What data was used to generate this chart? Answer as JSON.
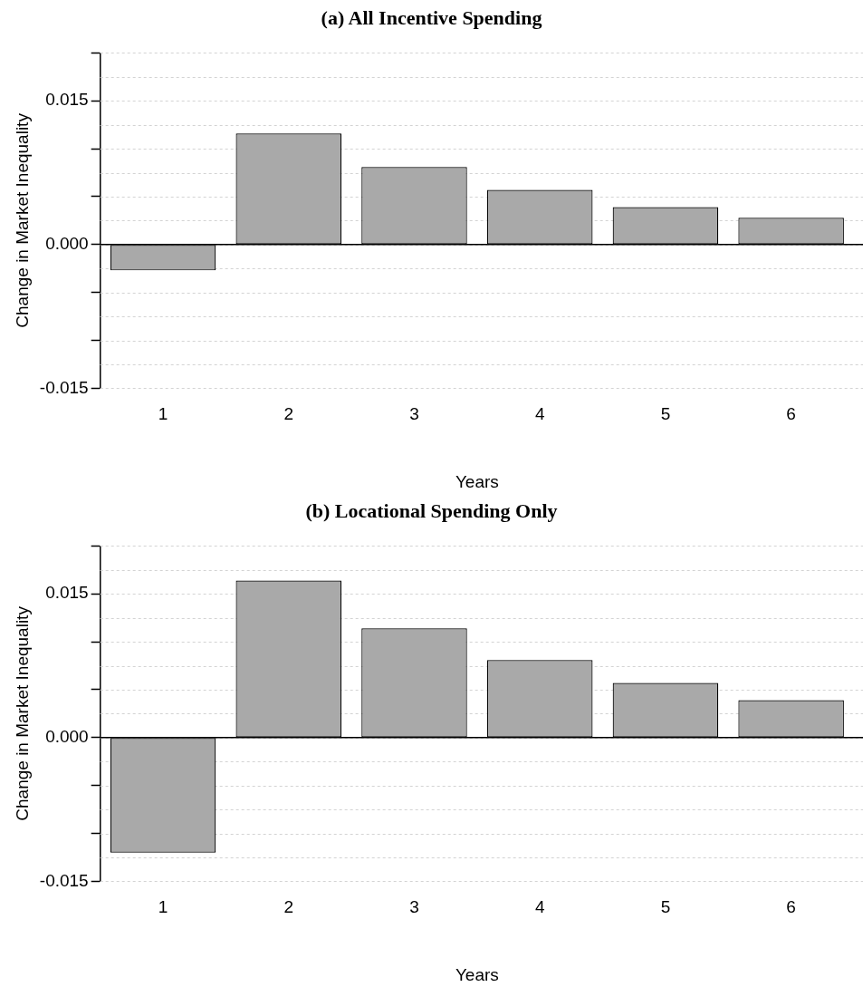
{
  "chart_data": [
    {
      "type": "bar",
      "title": "(a) All Incentive Spending",
      "xlabel": "Years",
      "ylabel": "Change in Market Inequality",
      "categories": [
        "1",
        "2",
        "3",
        "4",
        "5",
        "6"
      ],
      "values": [
        -0.0027,
        0.0116,
        0.0081,
        0.0057,
        0.0039,
        0.0028
      ],
      "color": "#a9a9a9",
      "ylim": [
        -0.015,
        0.02
      ],
      "yticks": [
        {
          "value": -0.015,
          "label": "-0.015"
        },
        {
          "value": -0.01,
          "label": null
        },
        {
          "value": -0.005,
          "label": null
        },
        {
          "value": 0,
          "label": "0.000"
        },
        {
          "value": 0.005,
          "label": null
        },
        {
          "value": 0.01,
          "label": null
        },
        {
          "value": 0.015,
          "label": "0.015"
        },
        {
          "value": 0.02,
          "label": null
        }
      ],
      "grid": "y",
      "ref_lines": [
        {
          "axis": "y",
          "value": 0,
          "color": "#000000"
        }
      ]
    },
    {
      "type": "bar",
      "title": "(b) Locational Spending Only",
      "xlabel": "Years",
      "ylabel": "Change in Market Inequality",
      "categories": [
        "1",
        "2",
        "3",
        "4",
        "5",
        "6"
      ],
      "values": [
        -0.012,
        0.0164,
        0.0114,
        0.0081,
        0.0057,
        0.0039
      ],
      "color": "#a9a9a9",
      "ylim": [
        -0.015,
        0.02
      ],
      "yticks": [
        {
          "value": -0.015,
          "label": "-0.015"
        },
        {
          "value": -0.01,
          "label": null
        },
        {
          "value": -0.005,
          "label": null
        },
        {
          "value": 0,
          "label": "0.000"
        },
        {
          "value": 0.005,
          "label": null
        },
        {
          "value": 0.01,
          "label": null
        },
        {
          "value": 0.015,
          "label": "0.015"
        },
        {
          "value": 0.02,
          "label": null
        }
      ],
      "grid": "y",
      "ref_lines": [
        {
          "axis": "y",
          "value": 0,
          "color": "#000000"
        }
      ]
    }
  ]
}
